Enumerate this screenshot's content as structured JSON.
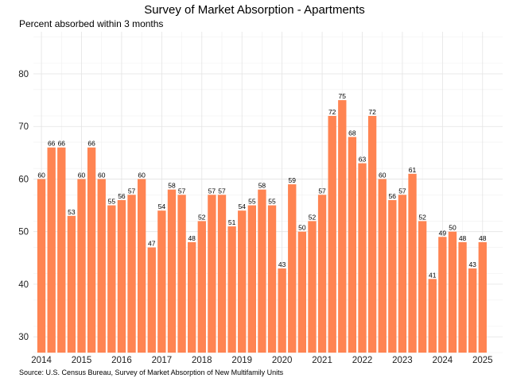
{
  "chart_data": {
    "type": "bar",
    "title": "Survey of Market Absorption - Apartments",
    "subtitle": "Percent absorbed within 3 months",
    "source": "Source: U.S. Census Bureau, Survey of Market Absorption of New Multifamily Units",
    "xlabel": "",
    "ylabel": "",
    "ylim": [
      27,
      88
    ],
    "yticks": [
      30,
      40,
      50,
      60,
      70,
      80
    ],
    "xlim": [
      2013.8,
      2025.5
    ],
    "xticks": [
      "2014",
      "2015",
      "2016",
      "2017",
      "2018",
      "2019",
      "2020",
      "2021",
      "2022",
      "2023",
      "2024",
      "2025"
    ],
    "grid": true,
    "legend": "none",
    "color": "#ff8452",
    "x": [
      2014.0,
      2014.25,
      2014.5,
      2014.75,
      2015.0,
      2015.25,
      2015.5,
      2015.75,
      2016.0,
      2016.25,
      2016.5,
      2016.75,
      2017.0,
      2017.25,
      2017.5,
      2017.75,
      2018.0,
      2018.25,
      2018.5,
      2018.75,
      2019.0,
      2019.25,
      2019.5,
      2019.75,
      2020.0,
      2020.25,
      2020.5,
      2020.75,
      2021.0,
      2021.25,
      2021.5,
      2021.75,
      2022.0,
      2022.25,
      2022.5,
      2022.75,
      2023.0,
      2023.25,
      2023.5,
      2023.75,
      2024.0,
      2024.25,
      2024.5,
      2024.75,
      2025.0
    ],
    "values": [
      60,
      66,
      66,
      53,
      60,
      66,
      60,
      55,
      56,
      57,
      60,
      47,
      54,
      58,
      57,
      48,
      52,
      57,
      57,
      51,
      54,
      55,
      58,
      55,
      43,
      59,
      50,
      52,
      57,
      72,
      75,
      68,
      63,
      72,
      60,
      56,
      57,
      61,
      52,
      41,
      49,
      50,
      48,
      43,
      48
    ]
  }
}
